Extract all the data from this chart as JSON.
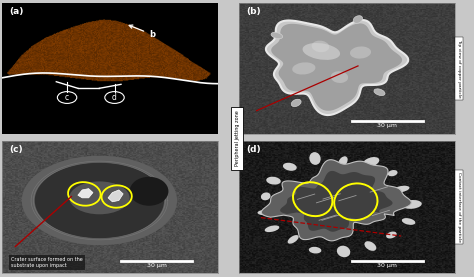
{
  "figure_title": "",
  "panel_labels": [
    "(a)",
    "(b)",
    "(c)",
    "(d)"
  ],
  "fig_bg": "#c8c8c8",
  "panel_a_bg": "#000000",
  "panel_b_bg": "#404040",
  "panel_c_bg": "#505050",
  "panel_d_bg": "#1a1a1a",
  "center_label": "Peripheral jetting zone",
  "scale_bar_text": "30 μm",
  "panel_b_side_text": "Top view of copper particle",
  "panel_d_side_text": "Contact interface of the particle",
  "panel_c_caption": "Crater surface formed on the\nsubstrate upon impact",
  "red_line_color": "#aa0000",
  "yellow_ellipse_color": "#ffff00",
  "white": "#ffffff",
  "black": "#000000"
}
